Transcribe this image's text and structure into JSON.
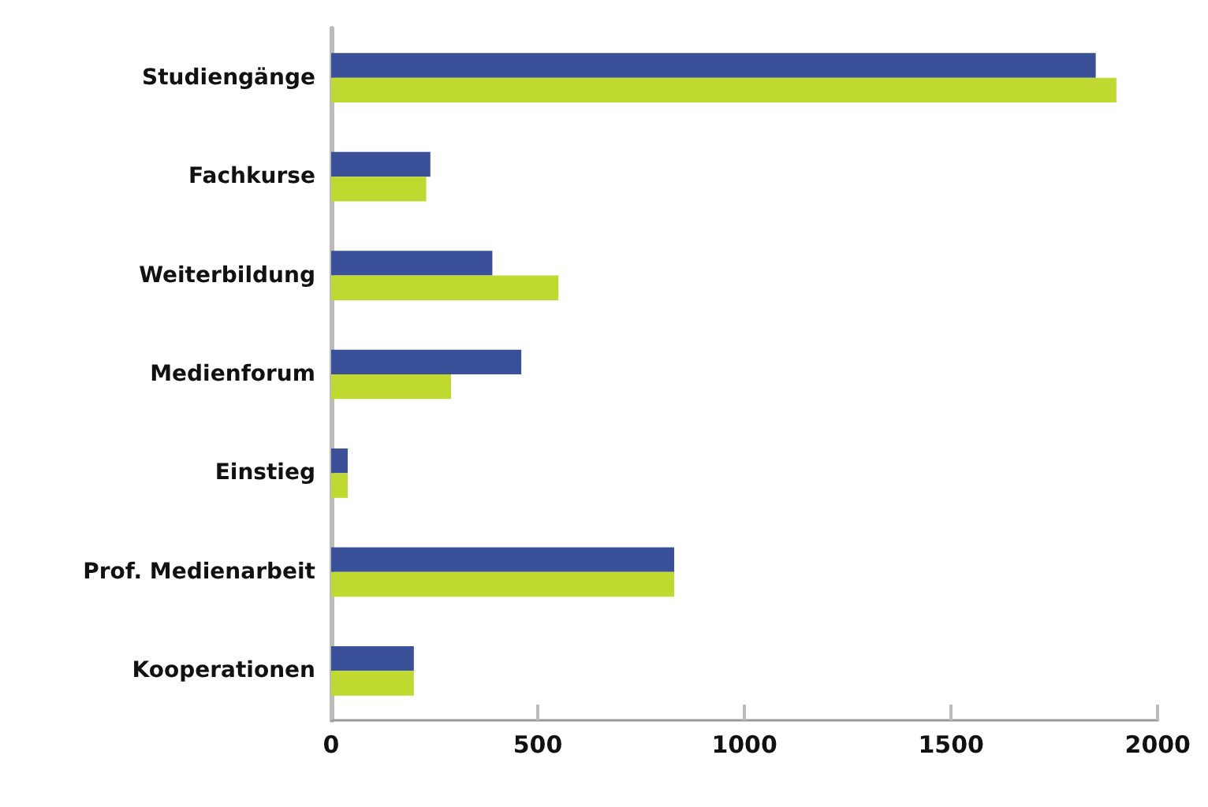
{
  "chart_data": {
    "type": "bar",
    "orientation": "horizontal",
    "categories": [
      "Studiengänge",
      "Fachkurse",
      "Weiterbildung",
      "Medienforum",
      "Einstieg",
      "Prof. Medienarbeit",
      "Kooperationen"
    ],
    "series": [
      {
        "color": "#3a5199",
        "values": [
          1850,
          240,
          390,
          460,
          40,
          830,
          200
        ]
      },
      {
        "color": "#c0d930",
        "values": [
          1900,
          230,
          550,
          290,
          40,
          830,
          200
        ]
      }
    ],
    "xlim": [
      0,
      2000
    ],
    "xticks": [
      0,
      500,
      1000,
      1500,
      2000
    ]
  }
}
